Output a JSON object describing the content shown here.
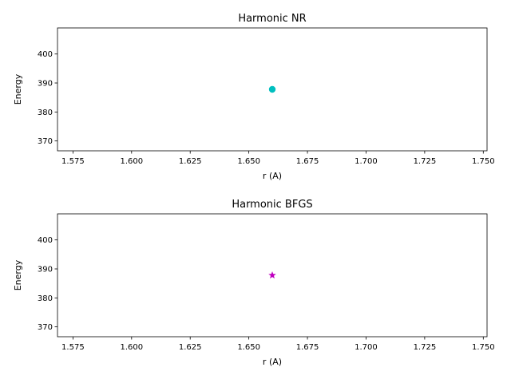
{
  "chart_data": [
    {
      "type": "scatter",
      "title": "Harmonic NR",
      "xlabel": "r (A)",
      "ylabel": "Energy",
      "xlim": [
        1.5684,
        1.7516
      ],
      "ylim": [
        366.6,
        409.0
      ],
      "xticks": [
        "1.575",
        "1.600",
        "1.625",
        "1.650",
        "1.675",
        "1.700",
        "1.725",
        "1.750"
      ],
      "xtick_values": [
        1.575,
        1.6,
        1.625,
        1.65,
        1.675,
        1.7,
        1.725,
        1.75
      ],
      "yticks": [
        "370",
        "380",
        "390",
        "400"
      ],
      "ytick_values": [
        370,
        380,
        390,
        400
      ],
      "grid": false,
      "series": [
        {
          "x": [
            1.66
          ],
          "y": [
            387.8
          ],
          "marker": "circle",
          "color": "#00bfbf"
        }
      ]
    },
    {
      "type": "scatter",
      "title": "Harmonic BFGS",
      "xlabel": "r (A)",
      "ylabel": "Energy",
      "xlim": [
        1.5684,
        1.7516
      ],
      "ylim": [
        366.6,
        409.0
      ],
      "xticks": [
        "1.575",
        "1.600",
        "1.625",
        "1.650",
        "1.675",
        "1.700",
        "1.725",
        "1.750"
      ],
      "xtick_values": [
        1.575,
        1.6,
        1.625,
        1.65,
        1.675,
        1.7,
        1.725,
        1.75
      ],
      "yticks": [
        "370",
        "380",
        "390",
        "400"
      ],
      "ytick_values": [
        370,
        380,
        390,
        400
      ],
      "grid": false,
      "series": [
        {
          "x": [
            1.66
          ],
          "y": [
            387.8
          ],
          "marker": "star",
          "color": "#bf00bf"
        }
      ]
    }
  ]
}
